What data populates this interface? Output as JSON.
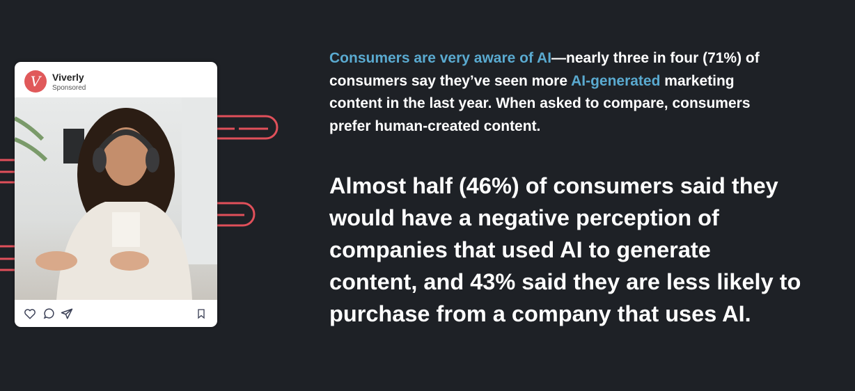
{
  "colors": {
    "background": "#1e2126",
    "accent_blue": "#5aaad0",
    "accent_red": "#e0505a"
  },
  "post": {
    "brand": "Viverly",
    "subtitle": "Sponsored",
    "logo_letter": "V",
    "actions": [
      "heart-icon",
      "comment-icon",
      "share-icon",
      "bookmark-icon"
    ]
  },
  "intro": {
    "lines": [
      [
        {
          "t": "Consumers are very aware of AI",
          "hl": true
        },
        {
          "t": "—nearly three in four (71%) of",
          "hl": false
        }
      ],
      [
        {
          "t": "consumers say they’ve seen more ",
          "hl": false
        },
        {
          "t": "AI-generated",
          "hl": true
        },
        {
          "t": " marketing",
          "hl": false
        }
      ],
      [
        {
          "t": "content in the last year. When asked to compare, consumers",
          "hl": false
        }
      ],
      [
        {
          "t": "prefer human-created content.",
          "hl": false
        }
      ]
    ]
  },
  "stat": {
    "lines": [
      "Almost half (46%) of consumers said they",
      "would have a negative perception of",
      "companies that used AI to generate",
      "content, and 43% said they are less likely to",
      "purchase from a company that uses AI."
    ]
  }
}
